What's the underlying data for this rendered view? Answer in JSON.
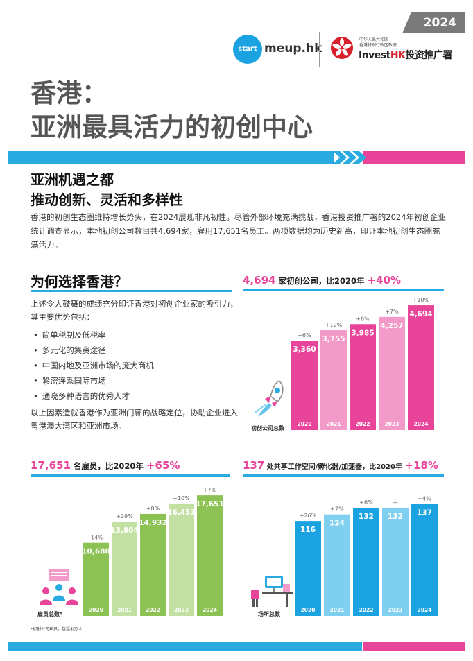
{
  "header": {
    "year": "2024",
    "startmeup_circle": "start",
    "startmeup_text": "meup.hk",
    "gov_line1": "中华人民共和国",
    "gov_line2": "香港特别行政区政府",
    "investhk_prefix": "Invest",
    "investhk_hk": "HK",
    "investhk_suffix": "投资推广署"
  },
  "title": {
    "line1": "香港：",
    "line2": "亚洲最具活力的初创中心"
  },
  "colors": {
    "pink": "#e8449a",
    "pink_light": "#f29ac8",
    "blue": "#1aa3e0",
    "blue_light": "#7fd0f0",
    "green": "#8cc153",
    "green_light": "#c3e0a3",
    "gray": "#7a7a7a",
    "accent_blue": "#29abe2"
  },
  "section": {
    "title_line1": "亚洲机遇之都",
    "title_line2": "推动创新、灵活和多样性",
    "intro": "香港的初创生态圈维持增长势头，在2024展现非凡韧性。尽管外部环境充满挑战，香港投资推广署的2024年初创企业统计调查显示，本地初创公司数目共4,694家，雇用17,651名员工。两项数据均为历史新高，印证本地初创生态圈充满活力。"
  },
  "why": {
    "title": "为何选择香港？",
    "desc": "上述令人鼓舞的成绩充分印证香港对初创企业家的吸引力，其主要优势包括：",
    "items": [
      "简单税制及低税率",
      "多元化的集资途径",
      "中国内地及亚洲市场的庞大商机",
      "紧密连系国际市场",
      "通晓多种语言的优秀人才"
    ],
    "conclusion": "以上因素造就香港作为亚洲门廊的战略定位，协助企业进入粤港澳大湾区和亚洲市场。"
  },
  "footnote": "*初创公司雇员，包括创办人",
  "chart_data": [
    {
      "type": "bar",
      "headline_value": "4,694",
      "headline_text": "家初创公司，比2020年",
      "headline_growth": "+40%",
      "caption": "初创公司总数",
      "categories": [
        "2020",
        "2021",
        "2022",
        "2023",
        "2024"
      ],
      "values": [
        3360,
        3755,
        3985,
        4257,
        4694
      ],
      "value_labels": [
        "3,360",
        "3,755",
        "3,985",
        "4,257",
        "4,694"
      ],
      "growth_labels": [
        "+6%",
        "+12%",
        "+6%",
        "+7%",
        "+10%"
      ],
      "colors": [
        "#e8449a",
        "#f29ac8",
        "#e8449a",
        "#f29ac8",
        "#e8449a"
      ]
    },
    {
      "type": "bar",
      "headline_value": "17,651",
      "headline_text": "名雇员，比2020年",
      "headline_growth": "+65%",
      "caption": "雇员总数*",
      "categories": [
        "2020",
        "2021",
        "2022",
        "2023",
        "2024"
      ],
      "values": [
        10688,
        13804,
        14932,
        16453,
        17651
      ],
      "value_labels": [
        "10,688",
        "13,804",
        "14,932",
        "16,453",
        "17,651"
      ],
      "growth_labels": [
        "-14%",
        "+29%",
        "+8%",
        "+10%",
        "+7%"
      ],
      "colors": [
        "#8cc153",
        "#c3e0a3",
        "#8cc153",
        "#c3e0a3",
        "#8cc153"
      ]
    },
    {
      "type": "bar",
      "headline_value": "137",
      "headline_text": "处共享工作空间/孵化器/加速器，比2020年",
      "headline_growth": "+18%",
      "caption": "场所总数",
      "categories": [
        "2020",
        "2021",
        "2022",
        "2023",
        "2024"
      ],
      "values": [
        116,
        124,
        132,
        132,
        137
      ],
      "value_labels": [
        "116",
        "124",
        "132",
        "132",
        "137"
      ],
      "growth_labels": [
        "+26%",
        "+7%",
        "+6%",
        "—",
        "+4%"
      ],
      "colors": [
        "#1aa3e0",
        "#7fd0f0",
        "#1aa3e0",
        "#7fd0f0",
        "#1aa3e0"
      ]
    }
  ]
}
